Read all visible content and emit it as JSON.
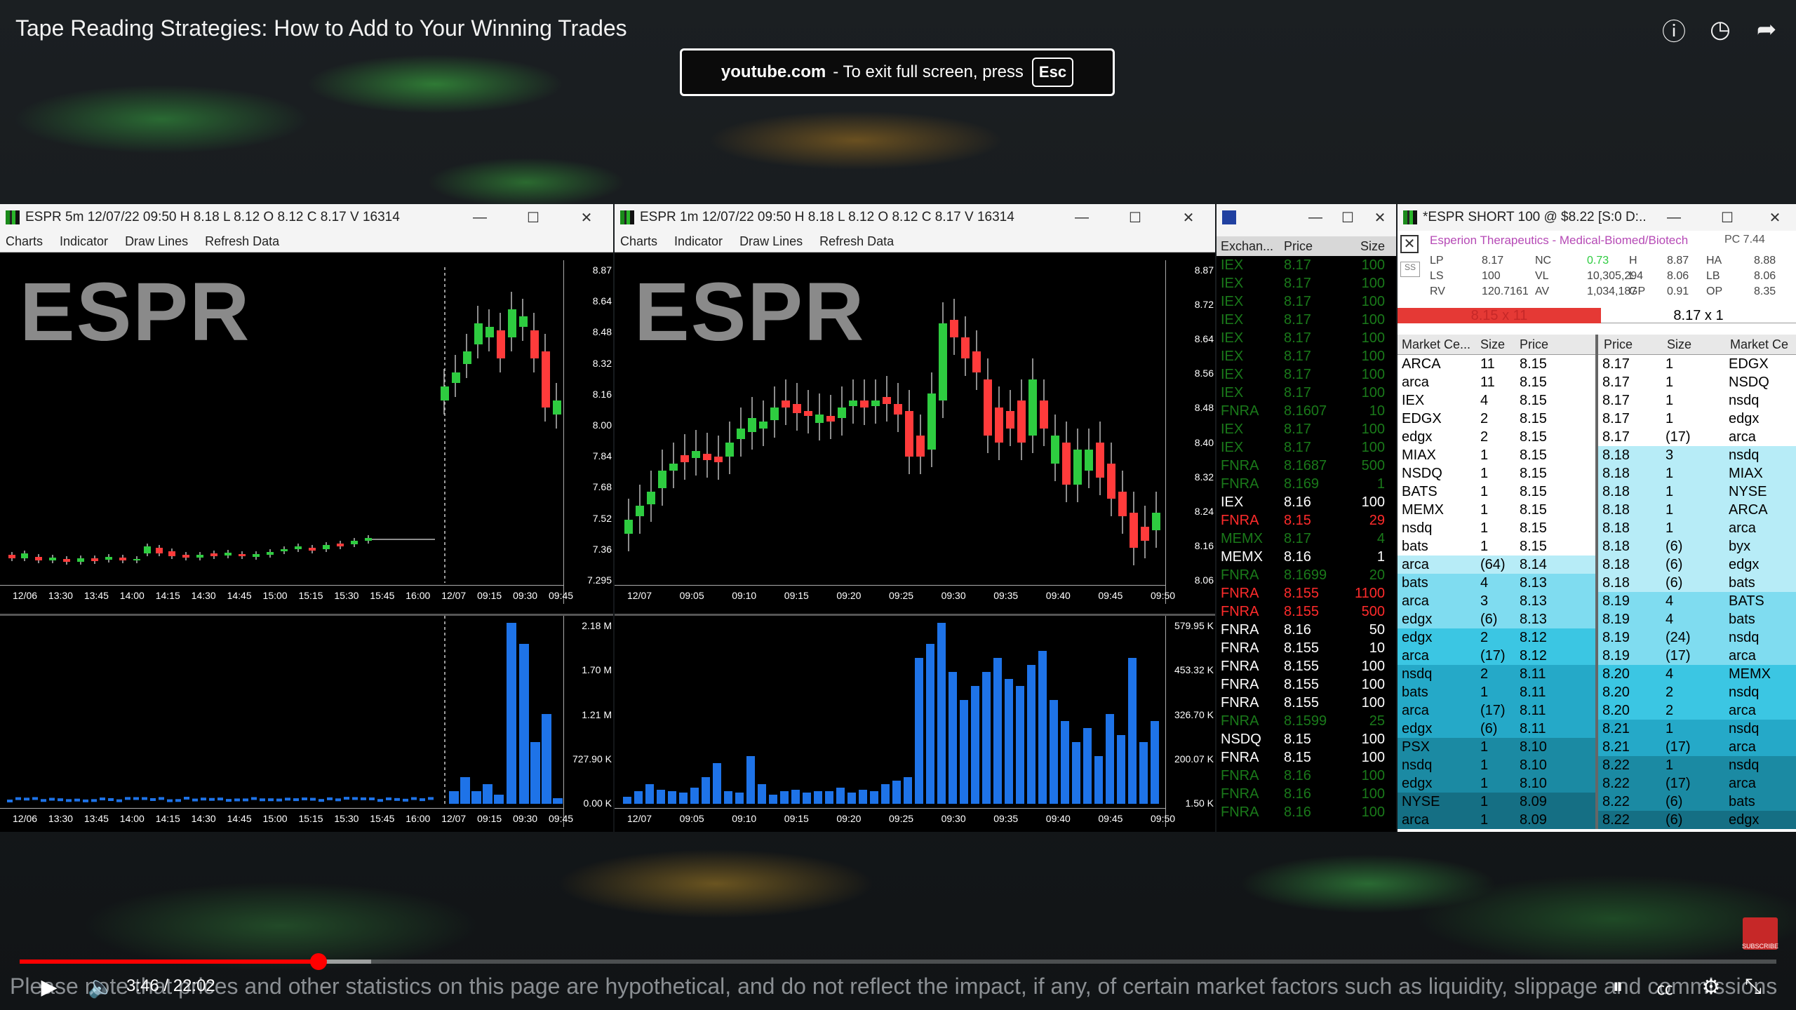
{
  "video": {
    "title": "Tape Reading Strategies: How to Add to Your Winning Trades",
    "fullscreen_site": "youtube.com",
    "fullscreen_msg": "-  To exit full screen, press",
    "esc_key": "Esc",
    "time": "3:46 / 22:02",
    "progress_fraction": 0.17,
    "buffered_fraction": 0.2,
    "disclaimer": "Please note that prices and other statistics on this page are hypothetical, and do not reflect the impact, if any, of certain market factors such as liquidity, slippage and commissions",
    "subscribe": "SUBSCRIBE",
    "icons": [
      "info-icon",
      "clock-icon",
      "share-icon",
      "play-icon",
      "volume-icon",
      "autoplay-toggle",
      "captions-icon",
      "settings-icon",
      "exit-fullscreen-icon"
    ]
  },
  "win5m": {
    "title": "ESPR  5m  12/07/22  09:50  H 8.18  L 8.12  O 8.12  C 8.17  V 16314",
    "menu": [
      "Charts",
      "Indicator",
      "Draw Lines",
      "Refresh Data"
    ],
    "ticker": "ESPR",
    "price_labels": [
      "8.87",
      "8.64",
      "8.48",
      "8.32",
      "8.16",
      "8.00",
      "7.84",
      "7.68",
      "7.52",
      "7.36",
      "7.295"
    ],
    "volume_labels": [
      "2.18 M",
      "1.70 M",
      "1.21 M",
      "727.90 K",
      "0.00 K"
    ],
    "time_labels": [
      "12/06",
      "13:30",
      "13:45",
      "14:00",
      "14:15",
      "14:30",
      "14:45",
      "15:00",
      "15:15",
      "15:30",
      "15:45",
      "16:00",
      "12/07",
      "09:15",
      "09:30",
      "09:45"
    ]
  },
  "win1m": {
    "title": "ESPR  1m  12/07/22  09:50  H 8.18  L 8.12  O 8.12  C 8.17  V 16314",
    "menu": [
      "Charts",
      "Indicator",
      "Draw Lines",
      "Refresh Data"
    ],
    "ticker": "ESPR",
    "price_labels": [
      "8.87",
      "8.72",
      "8.64",
      "8.56",
      "8.48",
      "8.40",
      "8.32",
      "8.24",
      "8.16",
      "8.06"
    ],
    "volume_labels": [
      "579.95 K",
      "453.32 K",
      "326.70 K",
      "200.07 K",
      "1.50 K"
    ],
    "time_labels": [
      "12/07",
      "09:05",
      "09:10",
      "09:15",
      "09:20",
      "09:25",
      "09:30",
      "09:35",
      "09:40",
      "09:45",
      "09:50"
    ]
  },
  "ts": {
    "headers": [
      "Exchan...",
      "Price",
      "Size"
    ],
    "rows": [
      [
        "IEX",
        "8.17",
        "100",
        "dg"
      ],
      [
        "IEX",
        "8.17",
        "100",
        "dg"
      ],
      [
        "IEX",
        "8.17",
        "100",
        "dg"
      ],
      [
        "IEX",
        "8.17",
        "100",
        "dg"
      ],
      [
        "IEX",
        "8.17",
        "100",
        "dg"
      ],
      [
        "IEX",
        "8.17",
        "100",
        "dg"
      ],
      [
        "IEX",
        "8.17",
        "100",
        "dg"
      ],
      [
        "IEX",
        "8.17",
        "100",
        "dg"
      ],
      [
        "FNRA",
        "8.1607",
        "10",
        "dg"
      ],
      [
        "IEX",
        "8.17",
        "100",
        "dg"
      ],
      [
        "IEX",
        "8.17",
        "100",
        "dg"
      ],
      [
        "FNRA",
        "8.1687",
        "500",
        "dg"
      ],
      [
        "FNRA",
        "8.169",
        "1",
        "dg"
      ],
      [
        "IEX",
        "8.16",
        "100",
        "w"
      ],
      [
        "FNRA",
        "8.15",
        "29",
        "r"
      ],
      [
        "MEMX",
        "8.17",
        "4",
        "dg"
      ],
      [
        "MEMX",
        "8.16",
        "1",
        "w"
      ],
      [
        "FNRA",
        "8.1699",
        "20",
        "dg"
      ],
      [
        "FNRA",
        "8.155",
        "1100",
        "r"
      ],
      [
        "FNRA",
        "8.155",
        "500",
        "r"
      ],
      [
        "FNRA",
        "8.16",
        "50",
        "w"
      ],
      [
        "FNRA",
        "8.155",
        "10",
        "w"
      ],
      [
        "FNRA",
        "8.155",
        "100",
        "w"
      ],
      [
        "FNRA",
        "8.155",
        "100",
        "w"
      ],
      [
        "FNRA",
        "8.155",
        "100",
        "w"
      ],
      [
        "FNRA",
        "8.1599",
        "25",
        "dg"
      ],
      [
        "NSDQ",
        "8.15",
        "100",
        "w"
      ],
      [
        "FNRA",
        "8.15",
        "100",
        "w"
      ],
      [
        "FNRA",
        "8.16",
        "100",
        "dg"
      ],
      [
        "FNRA",
        "8.16",
        "100",
        "dg"
      ],
      [
        "FNRA",
        "8.16",
        "100",
        "dg"
      ]
    ]
  },
  "l2": {
    "title": "*ESPR  SHORT 100 @ $8.22 [S:0 D:...",
    "company": "Esperion Therapeutics - Medical-Biomed/Biotech",
    "stats": [
      [
        "LP",
        "8.17",
        "NC",
        "0.73",
        "H",
        "8.87",
        "HA",
        "8.88"
      ],
      [
        "LS",
        "100",
        "VL",
        "10,305,294",
        "L",
        "8.06",
        "LB",
        "8.06"
      ],
      [
        "RV",
        "120.7161",
        "AV",
        "1,034,187",
        "GP",
        "0.91",
        "OP",
        "8.35"
      ]
    ],
    "pc": "PC 7.44",
    "bid_box": "8.15 x 11",
    "ask_box": "8.17 x 1",
    "bid_headers": [
      "Market Ce...",
      "Size",
      "Price"
    ],
    "ask_headers": [
      "Price",
      "Size",
      "Market Ce"
    ],
    "bids": [
      [
        "ARCA",
        "11",
        "8.15"
      ],
      [
        "arca",
        "11",
        "8.15"
      ],
      [
        "IEX",
        "4",
        "8.15"
      ],
      [
        "EDGX",
        "2",
        "8.15"
      ],
      [
        "edgx",
        "2",
        "8.15"
      ],
      [
        "MIAX",
        "1",
        "8.15"
      ],
      [
        "NSDQ",
        "1",
        "8.15"
      ],
      [
        "BATS",
        "1",
        "8.15"
      ],
      [
        "MEMX",
        "1",
        "8.15"
      ],
      [
        "nsdq",
        "1",
        "8.15"
      ],
      [
        "bats",
        "1",
        "8.15"
      ],
      [
        "arca",
        "(64)",
        "8.14"
      ],
      [
        "bats",
        "4",
        "8.13"
      ],
      [
        "arca",
        "3",
        "8.13"
      ],
      [
        "edgx",
        "(6)",
        "8.13"
      ],
      [
        "edgx",
        "2",
        "8.12"
      ],
      [
        "arca",
        "(17)",
        "8.12"
      ],
      [
        "nsdq",
        "2",
        "8.11"
      ],
      [
        "bats",
        "1",
        "8.11"
      ],
      [
        "arca",
        "(17)",
        "8.11"
      ],
      [
        "edgx",
        "(6)",
        "8.11"
      ],
      [
        "PSX",
        "1",
        "8.10"
      ],
      [
        "nsdq",
        "1",
        "8.10"
      ],
      [
        "edgx",
        "1",
        "8.10"
      ],
      [
        "NYSE",
        "1",
        "8.09"
      ],
      [
        "arca",
        "1",
        "8.09"
      ]
    ],
    "asks": [
      [
        "8.17",
        "1",
        "EDGX"
      ],
      [
        "8.17",
        "1",
        "NSDQ"
      ],
      [
        "8.17",
        "1",
        "nsdq"
      ],
      [
        "8.17",
        "1",
        "edgx"
      ],
      [
        "8.17",
        "(17)",
        "arca"
      ],
      [
        "8.18",
        "3",
        "nsdq"
      ],
      [
        "8.18",
        "1",
        "MIAX"
      ],
      [
        "8.18",
        "1",
        "NYSE"
      ],
      [
        "8.18",
        "1",
        "ARCA"
      ],
      [
        "8.18",
        "1",
        "arca"
      ],
      [
        "8.18",
        "(6)",
        "byx"
      ],
      [
        "8.18",
        "(6)",
        "edgx"
      ],
      [
        "8.18",
        "(6)",
        "bats"
      ],
      [
        "8.19",
        "4",
        "BATS"
      ],
      [
        "8.19",
        "4",
        "bats"
      ],
      [
        "8.19",
        "(24)",
        "nsdq"
      ],
      [
        "8.19",
        "(17)",
        "arca"
      ],
      [
        "8.20",
        "4",
        "MEMX"
      ],
      [
        "8.20",
        "2",
        "nsdq"
      ],
      [
        "8.20",
        "2",
        "arca"
      ],
      [
        "8.21",
        "1",
        "nsdq"
      ],
      [
        "8.21",
        "(17)",
        "arca"
      ],
      [
        "8.22",
        "1",
        "nsdq"
      ],
      [
        "8.22",
        "(17)",
        "arca"
      ],
      [
        "8.22",
        "(6)",
        "bats"
      ],
      [
        "8.22",
        "(6)",
        "edgx"
      ]
    ],
    "bid_colors": [
      "#ffffff",
      "#ffffff",
      "#ffffff",
      "#ffffff",
      "#ffffff",
      "#ffffff",
      "#ffffff",
      "#ffffff",
      "#ffffff",
      "#ffffff",
      "#ffffff",
      "#b7ecf7",
      "#7fdcf0",
      "#7fdcf0",
      "#7fdcf0",
      "#3bc6e3",
      "#3bc6e3",
      "#25a9c8",
      "#25a9c8",
      "#25a9c8",
      "#25a9c8",
      "#1b8aa3",
      "#1b8aa3",
      "#1b8aa3",
      "#156f84",
      "#156f84"
    ],
    "ask_colors": [
      "#ffffff",
      "#ffffff",
      "#ffffff",
      "#ffffff",
      "#ffffff",
      "#b7ecf7",
      "#b7ecf7",
      "#b7ecf7",
      "#b7ecf7",
      "#b7ecf7",
      "#b7ecf7",
      "#b7ecf7",
      "#b7ecf7",
      "#7fdcf0",
      "#7fdcf0",
      "#7fdcf0",
      "#7fdcf0",
      "#3bc6e3",
      "#3bc6e3",
      "#3bc6e3",
      "#25a9c8",
      "#25a9c8",
      "#1b8aa3",
      "#1b8aa3",
      "#1b8aa3",
      "#156f84"
    ]
  }
}
